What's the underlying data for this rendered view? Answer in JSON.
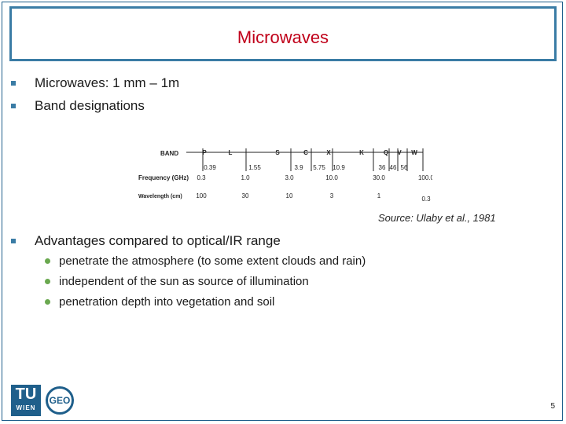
{
  "slide": {
    "title": "Microwaves",
    "bullets": [
      "Microwaves: 1 mm – 1m",
      "Band designations"
    ],
    "figure": {
      "band_label": "BAND",
      "bands": [
        "P",
        "L",
        "S",
        "C",
        "X",
        "K",
        "Q",
        "V",
        "W"
      ],
      "edge_freqs": [
        "0.39",
        "1.55",
        "3.9",
        "5.75",
        "10.9",
        "36",
        "46",
        "56"
      ],
      "freq_label": "Frequency (GHz)",
      "freq_ticks": [
        "0.3",
        "1.0",
        "3.0",
        "10.0",
        "30.0",
        "100.0"
      ],
      "wave_label": "Wavelength (cm)",
      "wave_ticks": [
        "100",
        "30",
        "10",
        "3",
        "1",
        "0.3"
      ]
    },
    "source": "Source: Ulaby et al., 1981",
    "advantages": {
      "heading": "Advantages compared to optical/IR range",
      "items": [
        "penetrate the atmosphere (to some extent clouds and rain)",
        "independent of the sun as source of illumination",
        "penetration depth into vegetation and soil"
      ]
    },
    "logo": {
      "tu": "TU",
      "wien": "WIEN",
      "geo": "GEO"
    },
    "page_number": "5"
  }
}
